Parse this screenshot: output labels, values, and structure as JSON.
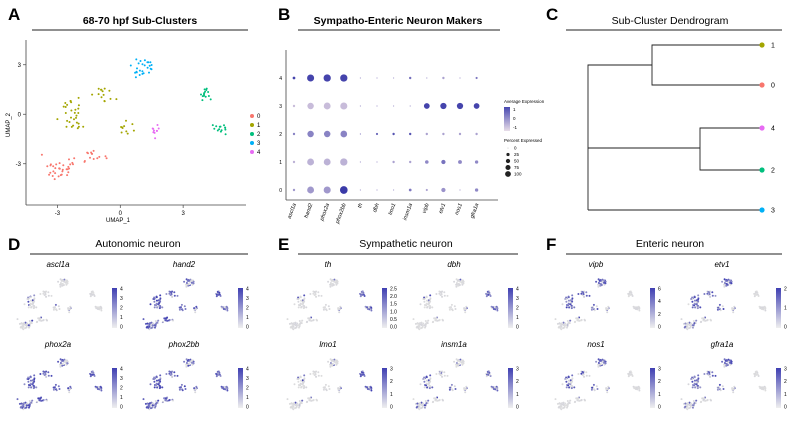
{
  "panels": {
    "A": {
      "letter": "A",
      "title": "68-70 hpf Sub-Clusters"
    },
    "B": {
      "letter": "B",
      "title": "Sympatho-Enteric Neuron Makers"
    },
    "C": {
      "letter": "C",
      "title": "Sub-Cluster Dendrogram"
    },
    "D": {
      "letter": "D",
      "title": "Autonomic neuron"
    },
    "E": {
      "letter": "E",
      "title": "Sympathetic neuron"
    },
    "F": {
      "letter": "F",
      "title": "Enteric neuron"
    }
  },
  "colors": {
    "cluster": [
      "#f8766d",
      "#a3a500",
      "#00bf7d",
      "#00b0f6",
      "#e76bf3"
    ],
    "expr_low": "#d9d9d9",
    "expr_high": "#3f3fb2"
  },
  "chart_data": [
    {
      "type": "scatter",
      "panel": "A",
      "title": "68-70 hpf Sub-Clusters",
      "xlabel": "UMAP_1",
      "ylabel": "UMAP_2",
      "xlim": [
        -4.5,
        6
      ],
      "ylim": [
        -5.5,
        4.5
      ],
      "xticks": [
        -3,
        0,
        3
      ],
      "yticks": [
        -3,
        0,
        3
      ],
      "xtick_labels": [
        "-3",
        "0",
        "3"
      ],
      "ytick_labels": [
        "-3",
        "0",
        "3"
      ],
      "legend": {
        "position": "right",
        "entries": [
          "0",
          "1",
          "2",
          "3",
          "4"
        ]
      },
      "grid": false
    },
    {
      "type": "scatter",
      "panel": "B",
      "title": "Sympatho-Enteric Neuron Makers",
      "genes": [
        "ascl1a",
        "hand2",
        "phox2a",
        "phox2bb",
        "th",
        "dbh",
        "lmo1",
        "insm1a",
        "vipb",
        "etv1",
        "nos1",
        "gfra1a"
      ],
      "clusters": [
        "4",
        "3",
        "2",
        "1",
        "0"
      ],
      "avg_expression": [
        [
          1.8,
          1.8,
          1.8,
          1.8,
          0,
          0,
          0,
          1.0,
          0,
          0,
          0,
          0.8
        ],
        [
          -0.5,
          -0.5,
          -0.5,
          -0.5,
          0,
          0,
          0,
          0,
          1.8,
          1.8,
          1.8,
          1.8
        ],
        [
          0.6,
          0.6,
          0.6,
          0.6,
          0.5,
          1.2,
          1.5,
          1.5,
          0,
          0,
          0,
          0
        ],
        [
          -0.3,
          -0.3,
          -0.3,
          -0.3,
          0,
          0,
          0,
          0,
          0.5,
          0.9,
          0.5,
          0.5
        ],
        [
          0.2,
          0.2,
          0.2,
          2.0,
          0,
          0,
          0,
          0.8,
          0,
          0.3,
          0,
          0.5
        ]
      ],
      "pct_expressed": [
        [
          5,
          75,
          80,
          80,
          0,
          0,
          0,
          3,
          0,
          3,
          0,
          2
        ],
        [
          3,
          60,
          70,
          75,
          0,
          0,
          0,
          0,
          45,
          55,
          55,
          45
        ],
        [
          3,
          60,
          60,
          65,
          0,
          2,
          3,
          3,
          3,
          3,
          3,
          3
        ],
        [
          3,
          70,
          70,
          80,
          0,
          0,
          3,
          3,
          12,
          20,
          15,
          10
        ],
        [
          3,
          70,
          75,
          90,
          0,
          0,
          0,
          5,
          2,
          20,
          0,
          10
        ]
      ],
      "color_legend": {
        "title": "Average Expression",
        "ticks": [
          "1",
          "0",
          "-1"
        ]
      },
      "size_legend": {
        "title": "Percent Expressed",
        "entries": [
          "0",
          "25",
          "50",
          "75",
          "100"
        ]
      }
    },
    {
      "type": "dendrogram",
      "panel": "C",
      "title": "Sub-Cluster Dendrogram",
      "leaves": [
        "1",
        "0",
        "4",
        "2",
        "3"
      ]
    },
    {
      "type": "scatter",
      "panel": "D-F",
      "plots": [
        {
          "gene": "ascl1a",
          "group": "D",
          "scale": [
            "4",
            "3",
            "2",
            "1",
            "0"
          ]
        },
        {
          "gene": "hand2",
          "group": "D",
          "scale": [
            "4",
            "3",
            "2",
            "1",
            "0"
          ]
        },
        {
          "gene": "phox2a",
          "group": "D",
          "scale": [
            "4",
            "3",
            "2",
            "1",
            "0"
          ]
        },
        {
          "gene": "phox2bb",
          "group": "D",
          "scale": [
            "4",
            "3",
            "2",
            "1",
            "0"
          ]
        },
        {
          "gene": "th",
          "group": "E",
          "scale": [
            "2.5",
            "2.0",
            "1.5",
            "1.0",
            "0.5",
            "0.0"
          ]
        },
        {
          "gene": "dbh",
          "group": "E",
          "scale": [
            "4",
            "3",
            "2",
            "1",
            "0"
          ]
        },
        {
          "gene": "lmo1",
          "group": "E",
          "scale": [
            "3",
            "2",
            "1",
            "0"
          ]
        },
        {
          "gene": "insm1a",
          "group": "E",
          "scale": [
            "3",
            "2",
            "1",
            "0"
          ]
        },
        {
          "gene": "vipb",
          "group": "F",
          "scale": [
            "6",
            "4",
            "2",
            "0"
          ]
        },
        {
          "gene": "etv1",
          "group": "F",
          "scale": [
            "2",
            "1",
            "0"
          ]
        },
        {
          "gene": "nos1",
          "group": "F",
          "scale": [
            "3",
            "2",
            "1",
            "0"
          ]
        },
        {
          "gene": "gfra1a",
          "group": "F",
          "scale": [
            "3",
            "2",
            "1",
            "0"
          ]
        }
      ]
    }
  ]
}
